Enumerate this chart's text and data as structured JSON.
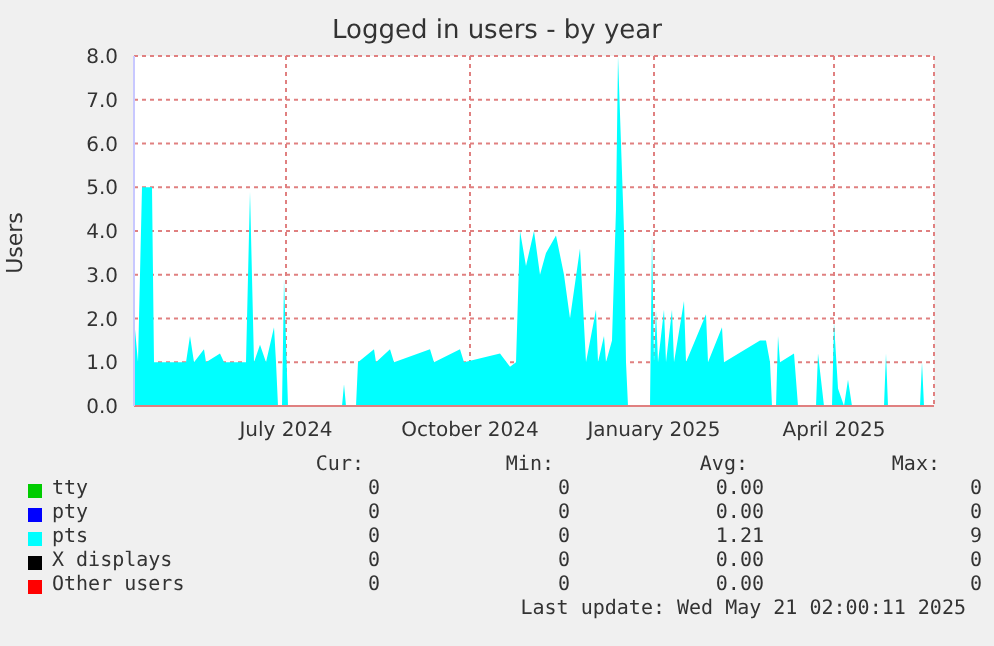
{
  "chart_data": {
    "type": "area",
    "title": "Logged in users - by year",
    "ylabel": "Users",
    "x": [
      "2024-04-16",
      "2024-04-18",
      "2024-04-20",
      "2024-04-25",
      "2024-04-26",
      "2024-05-12",
      "2024-05-14",
      "2024-05-16",
      "2024-05-21",
      "2024-05-22",
      "2024-05-29",
      "2024-05-31",
      "2024-06-11",
      "2024-06-13",
      "2024-06-15",
      "2024-06-18",
      "2024-06-21",
      "2024-06-25",
      "2024-06-26",
      "2024-06-27",
      "2024-06-29",
      "2024-06-30",
      "2024-07-02",
      "2024-07-29",
      "2024-07-30",
      "2024-07-31",
      "2024-08-05",
      "2024-08-06",
      "2024-08-14",
      "2024-08-15",
      "2024-08-22",
      "2024-08-24",
      "2024-09-11",
      "2024-09-13",
      "2024-09-26",
      "2024-09-28",
      "2024-10-16",
      "2024-10-21",
      "2024-10-24",
      "2024-10-26",
      "2024-10-29",
      "2024-11-02",
      "2024-11-05",
      "2024-11-08",
      "2024-11-13",
      "2024-11-17",
      "2024-11-20",
      "2024-11-25",
      "2024-11-28",
      "2024-12-03",
      "2024-12-04",
      "2024-12-07",
      "2024-12-08",
      "2024-12-11",
      "2024-12-13",
      "2024-12-14",
      "2024-12-17",
      "2024-12-18",
      "2024-12-19",
      "2024-12-30",
      "2024-12-31",
      "2025-01-01",
      "2025-01-02",
      "2025-01-03",
      "2025-01-06",
      "2025-01-07",
      "2025-01-10",
      "2025-01-11",
      "2025-01-16",
      "2025-01-17",
      "2025-01-27",
      "2025-01-28",
      "2025-02-04",
      "2025-02-05",
      "2025-02-23",
      "2025-02-26",
      "2025-02-28",
      "2025-03-01",
      "2025-03-03",
      "2025-03-04",
      "2025-03-05",
      "2025-03-12",
      "2025-03-14",
      "2025-03-23",
      "2025-03-24",
      "2025-03-27",
      "2025-03-31",
      "2025-04-01",
      "2025-04-03",
      "2025-04-06",
      "2025-04-08",
      "2025-04-10",
      "2025-04-26",
      "2025-04-27",
      "2025-04-28",
      "2025-05-14",
      "2025-05-15",
      "2025-05-16",
      "2025-05-21"
    ],
    "series": [
      {
        "name": "tty",
        "color": "#00cc00",
        "values": [
          null,
          null,
          null,
          null,
          null,
          null,
          null,
          null,
          null,
          null,
          null,
          null,
          null,
          null,
          null,
          null,
          null,
          null,
          null,
          null,
          null,
          null,
          null,
          null,
          null,
          null,
          null,
          null,
          null,
          null,
          null,
          null,
          null,
          null,
          null,
          null,
          null,
          null,
          null,
          null,
          null,
          null,
          null,
          null,
          null,
          null,
          null,
          null,
          null,
          null,
          null,
          null,
          null,
          null,
          null,
          null,
          null,
          null,
          null,
          null,
          null,
          null,
          null,
          null,
          null,
          null,
          null,
          null,
          null,
          null,
          null,
          null,
          null,
          null,
          null,
          null,
          null,
          null,
          null,
          null,
          null,
          null,
          null,
          null,
          null,
          null,
          null,
          null,
          null,
          null,
          null,
          null,
          null,
          null,
          null,
          null,
          null,
          null,
          null
        ]
      },
      {
        "name": "pty",
        "color": "#0000ff",
        "values": [
          null,
          null,
          null,
          null,
          null,
          null,
          null,
          null,
          null,
          null,
          null,
          null,
          null,
          null,
          null,
          null,
          null,
          null,
          null,
          null,
          null,
          null,
          null,
          null,
          null,
          null,
          null,
          null,
          null,
          null,
          null,
          null,
          null,
          null,
          null,
          null,
          null,
          null,
          null,
          null,
          null,
          null,
          null,
          null,
          null,
          null,
          null,
          null,
          null,
          null,
          null,
          null,
          null,
          null,
          null,
          null,
          null,
          null,
          null,
          null,
          null,
          null,
          null,
          null,
          null,
          null,
          null,
          null,
          null,
          null,
          null,
          null,
          null,
          null,
          null,
          null,
          null,
          null,
          null,
          null,
          null,
          null,
          null,
          null,
          null,
          null,
          null,
          null,
          null,
          null,
          null,
          null,
          null,
          null,
          null,
          null,
          null,
          null,
          null
        ]
      },
      {
        "name": "pts",
        "color": "#00ffff",
        "values": [
          2.0,
          1.0,
          5.0,
          5.0,
          1.0,
          1.0,
          1.6,
          1.0,
          1.3,
          1.0,
          1.2,
          1.0,
          1.0,
          4.9,
          1.0,
          1.4,
          1.0,
          1.8,
          1.0,
          0,
          0,
          2.9,
          0,
          0,
          0.5,
          0,
          0,
          1.0,
          1.3,
          1.0,
          1.3,
          1.0,
          1.3,
          1.0,
          1.3,
          1.0,
          1.2,
          0.9,
          1.0,
          4.0,
          3.2,
          4.0,
          3.0,
          3.5,
          3.9,
          3.0,
          2.0,
          3.6,
          1.0,
          2.2,
          1.0,
          1.6,
          1.0,
          1.5,
          4.5,
          8.0,
          4.0,
          1.0,
          0,
          0,
          3.9,
          1.0,
          2.2,
          1.0,
          2.2,
          1.0,
          2.2,
          1.0,
          2.4,
          1.0,
          2.1,
          1.0,
          1.8,
          1.0,
          1.5,
          1.5,
          1.0,
          0,
          0,
          1.6,
          1.0,
          1.2,
          0,
          0,
          1.2,
          0,
          0,
          1.9,
          0.4,
          0,
          0.6,
          0,
          0,
          1.2,
          0,
          0,
          1.0,
          0,
          0
        ]
      },
      {
        "name": "X displays",
        "color": "#000000",
        "values": [
          null,
          null,
          null,
          null,
          null,
          null,
          null,
          null,
          null,
          null,
          null,
          null,
          null,
          null,
          null,
          null,
          null,
          null,
          null,
          null,
          null,
          null,
          null,
          null,
          null,
          null,
          null,
          null,
          null,
          null,
          null,
          null,
          null,
          null,
          null,
          null,
          null,
          null,
          null,
          null,
          null,
          null,
          null,
          null,
          null,
          null,
          null,
          null,
          null,
          null,
          null,
          null,
          null,
          null,
          null,
          null,
          null,
          null,
          null,
          null,
          null,
          null,
          null,
          null,
          null,
          null,
          null,
          null,
          null,
          null,
          null,
          null,
          null,
          null,
          null,
          null,
          null,
          null,
          null,
          null,
          null,
          null,
          null,
          null,
          null,
          null,
          null,
          null,
          null,
          null,
          null,
          null,
          null,
          null,
          null,
          null,
          null,
          null,
          null
        ]
      },
      {
        "name": "Other users",
        "color": "#ff0000",
        "values": [
          null,
          null,
          null,
          null,
          null,
          null,
          null,
          null,
          null,
          null,
          null,
          null,
          null,
          null,
          null,
          null,
          null,
          null,
          null,
          null,
          null,
          null,
          null,
          null,
          null,
          null,
          null,
          null,
          null,
          null,
          null,
          null,
          null,
          null,
          null,
          null,
          null,
          null,
          null,
          null,
          null,
          null,
          null,
          null,
          null,
          null,
          null,
          null,
          null,
          null,
          null,
          null,
          null,
          null,
          null,
          null,
          null,
          null,
          null,
          null,
          null,
          null,
          null,
          null,
          null,
          null,
          null,
          null,
          null,
          null,
          null,
          null,
          null,
          null,
          null,
          null,
          null,
          null,
          null,
          null,
          null,
          null,
          null,
          null,
          null,
          null,
          null,
          null,
          null,
          null,
          null,
          null,
          null,
          null,
          null,
          null,
          null,
          null,
          null
        ]
      }
    ],
    "xlim": [
      "2024-04-16",
      "2025-05-21"
    ],
    "xticks": [
      {
        "value": "2024-07-01",
        "label": "July 2024"
      },
      {
        "value": "2024-10-01",
        "label": "October 2024"
      },
      {
        "value": "2025-01-01",
        "label": "January 2025"
      },
      {
        "value": "2025-04-01",
        "label": "April 2025"
      }
    ],
    "ylim": [
      0,
      8
    ],
    "yticks": [
      {
        "value": 0,
        "label": "0.0"
      },
      {
        "value": 1,
        "label": "1.0"
      },
      {
        "value": 2,
        "label": "2.0"
      },
      {
        "value": 3,
        "label": "3.0"
      },
      {
        "value": 4,
        "label": "4.0"
      },
      {
        "value": 5,
        "label": "5.0"
      },
      {
        "value": 6,
        "label": "6.0"
      },
      {
        "value": 7,
        "label": "7.0"
      },
      {
        "value": 8,
        "label": "8.0"
      }
    ],
    "grid": true,
    "legend": "bottom",
    "annotations": [
      "Cur:",
      "Min:",
      "Avg:",
      "Max:",
      "0",
      "0",
      "0.00",
      "0",
      "0",
      "0",
      "0.00",
      "0",
      "0",
      "0",
      "1.21",
      "9",
      "0",
      "0",
      "0.00",
      "0",
      "0",
      "0",
      "0.00",
      "0",
      "Last update: Wed May 21 02:00:11 2025"
    ]
  }
}
